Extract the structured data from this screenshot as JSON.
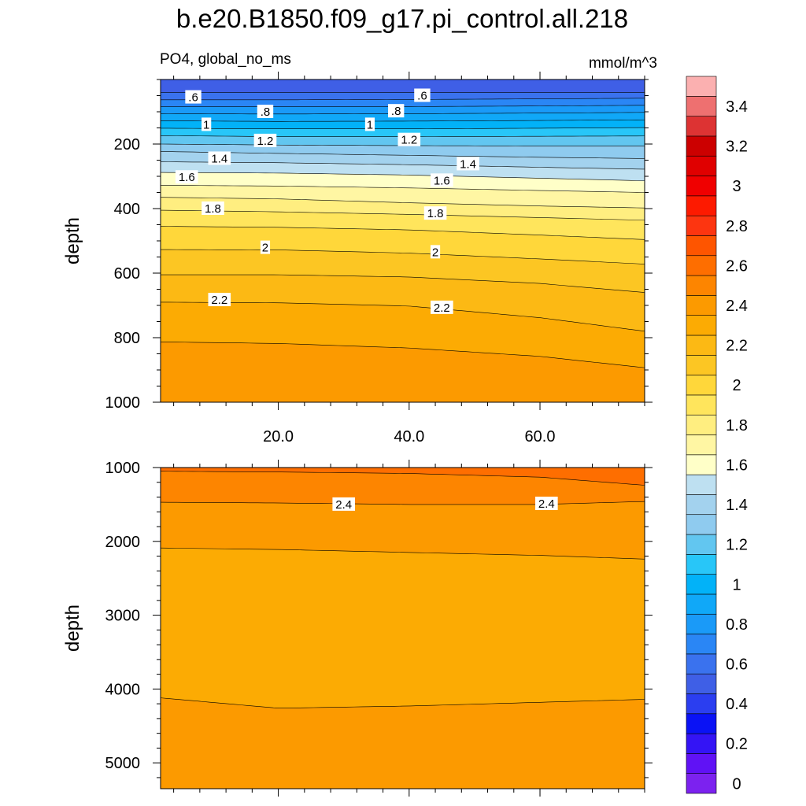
{
  "title": "b.e20.B1850.f09_g17.pi_control.all.218",
  "subtitle_left": "PO4, global_no_ms",
  "subtitle_right": "mmol/m^3",
  "colors": {
    "levels_palette": [
      "#7c22ef",
      "#6012f5",
      "#3414f5",
      "#0a12f5",
      "#2b3ef0",
      "#3f5fe6",
      "#3a72ee",
      "#2a86f5",
      "#1a9af8",
      "#10a8f8",
      "#02b2f8",
      "#28c6f8",
      "#62c6f0",
      "#8fcbef",
      "#a3d2ee",
      "#bee0f1",
      "#ffffc8",
      "#fff6a3",
      "#ffee80",
      "#ffe55c",
      "#ffd73a",
      "#fcc623",
      "#fcb914",
      "#fcab03",
      "#fc9a00",
      "#fd8500",
      "#fe6e00",
      "#fe5500",
      "#fd3510",
      "#fd1a00",
      "#f00000",
      "#e00000",
      "#cc0000",
      "#dd3333",
      "#ee7070",
      "#fbb0b0"
    ]
  },
  "chart_data": [
    {
      "type": "contour",
      "panel": "upper",
      "xlabel": "",
      "ylabel": "depth",
      "xlim": [
        2,
        76
      ],
      "ylim": [
        1000,
        0
      ],
      "x_ticks": [
        20,
        40,
        60
      ],
      "x_tick_labels": [
        "20.0",
        "40.0",
        "60.0"
      ],
      "y_ticks": [
        200,
        400,
        600,
        800,
        1000
      ],
      "y_tick_labels": [
        "200",
        "400",
        "600",
        "800",
        "1000"
      ],
      "contour_levels": [
        0.5,
        0.6,
        0.7,
        0.8,
        0.9,
        1.0,
        1.1,
        1.2,
        1.3,
        1.4,
        1.5,
        1.6,
        1.7,
        1.8,
        1.9,
        2.0,
        2.1,
        2.2,
        2.3
      ],
      "contour_depth_x": [
        2,
        20,
        40,
        60,
        76
      ],
      "contour_depths": [
        [
          40,
          40,
          40,
          40,
          40
        ],
        [
          63,
          63,
          62,
          60,
          58
        ],
        [
          84,
          84,
          84,
          82,
          80
        ],
        [
          106,
          107,
          106,
          104,
          102
        ],
        [
          128,
          130,
          129,
          127,
          125
        ],
        [
          151,
          153,
          153,
          151,
          149
        ],
        [
          174,
          177,
          177,
          176,
          175
        ],
        [
          200,
          203,
          205,
          206,
          206
        ],
        [
          223,
          229,
          235,
          241,
          245
        ],
        [
          255,
          258,
          264,
          272,
          278
        ],
        [
          288,
          290,
          296,
          306,
          314
        ],
        [
          328,
          330,
          336,
          344,
          350
        ],
        [
          365,
          370,
          382,
          392,
          398
        ],
        [
          405,
          410,
          418,
          428,
          436
        ],
        [
          455,
          458,
          466,
          482,
          496
        ],
        [
          527,
          528,
          538,
          556,
          572
        ],
        [
          605,
          605,
          612,
          632,
          660
        ],
        [
          690,
          692,
          702,
          738,
          780
        ],
        [
          813,
          818,
          832,
          858,
          893
        ]
      ],
      "labels": [
        {
          "text": ".6",
          "x": 7,
          "depth": 55
        },
        {
          "text": ".6",
          "x": 42,
          "depth": 50
        },
        {
          "text": ".8",
          "x": 18,
          "depth": 100
        },
        {
          "text": ".8",
          "x": 38,
          "depth": 98
        },
        {
          "text": "1",
          "x": 9,
          "depth": 140
        },
        {
          "text": "1",
          "x": 34,
          "depth": 140
        },
        {
          "text": "1.2",
          "x": 18,
          "depth": 190
        },
        {
          "text": "1.2",
          "x": 40,
          "depth": 187
        },
        {
          "text": "1.4",
          "x": 11,
          "depth": 245
        },
        {
          "text": "1.4",
          "x": 49,
          "depth": 262
        },
        {
          "text": "1.6",
          "x": 6,
          "depth": 303
        },
        {
          "text": "1.6",
          "x": 45,
          "depth": 313
        },
        {
          "text": "1.8",
          "x": 10,
          "depth": 400
        },
        {
          "text": "1.8",
          "x": 44,
          "depth": 415
        },
        {
          "text": "2",
          "x": 18,
          "depth": 521
        },
        {
          "text": "2",
          "x": 44,
          "depth": 535
        },
        {
          "text": "2.2",
          "x": 11,
          "depth": 683
        },
        {
          "text": "2.2",
          "x": 45,
          "depth": 707
        }
      ]
    },
    {
      "type": "contour",
      "panel": "lower",
      "xlabel": "",
      "ylabel": "depth",
      "xlim": [
        2,
        76
      ],
      "ylim": [
        5350,
        1000
      ],
      "y_ticks": [
        1000,
        2000,
        3000,
        4000,
        5000
      ],
      "y_tick_labels": [
        "1000",
        "2000",
        "3000",
        "4000",
        "5000"
      ],
      "contour_levels": [
        2.4,
        2.3,
        2.2
      ],
      "contour_depth_x": [
        2,
        20,
        40,
        60,
        76
      ],
      "contour_depths": [
        [
          1470,
          1480,
          1500,
          1500,
          1460
        ],
        [
          2090,
          2110,
          2150,
          2190,
          2240
        ],
        [
          4120,
          4260,
          4230,
          4180,
          4140
        ]
      ],
      "top_band_depth_x": [
        2,
        20,
        40,
        60,
        76
      ],
      "top_band_depths": [
        1050,
        1060,
        1080,
        1130,
        1240
      ],
      "labels": [
        {
          "text": "2.4",
          "x": 30,
          "depth": 1500
        },
        {
          "text": "2.4",
          "x": 61,
          "depth": 1490
        }
      ]
    }
  ],
  "colorbar": {
    "tick_labels": [
      "0",
      "0.2",
      "0.4",
      "0.6",
      "0.8",
      "1",
      "1.2",
      "1.4",
      "1.6",
      "1.8",
      "2",
      "2.2",
      "2.4",
      "2.6",
      "2.8",
      "3",
      "3.2",
      "3.4"
    ]
  }
}
